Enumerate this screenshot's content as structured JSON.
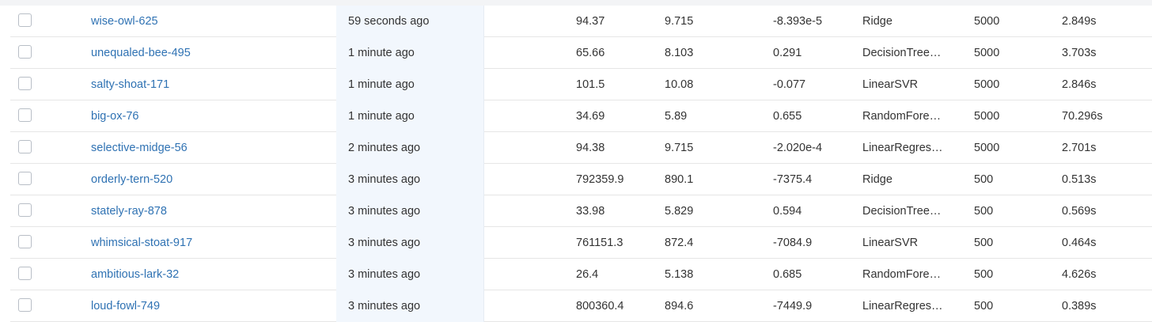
{
  "runs_table": {
    "rows": [
      {
        "run_name": "wise-owl-625",
        "created": "59 seconds ago",
        "metric_1": "94.37",
        "metric_2": "9.715",
        "metric_3": "-8.393e-5",
        "model": "Ridge",
        "param": "5000",
        "duration": "2.849s"
      },
      {
        "run_name": "unequaled-bee-495",
        "created": "1 minute ago",
        "metric_1": "65.66",
        "metric_2": "8.103",
        "metric_3": "0.291",
        "model": "DecisionTree…",
        "param": "5000",
        "duration": "3.703s"
      },
      {
        "run_name": "salty-shoat-171",
        "created": "1 minute ago",
        "metric_1": "101.5",
        "metric_2": "10.08",
        "metric_3": "-0.077",
        "model": "LinearSVR",
        "param": "5000",
        "duration": "2.846s"
      },
      {
        "run_name": "big-ox-76",
        "created": "1 minute ago",
        "metric_1": "34.69",
        "metric_2": "5.89",
        "metric_3": "0.655",
        "model": "RandomFore…",
        "param": "5000",
        "duration": "70.296s"
      },
      {
        "run_name": "selective-midge-56",
        "created": "2 minutes ago",
        "metric_1": "94.38",
        "metric_2": "9.715",
        "metric_3": "-2.020e-4",
        "model": "LinearRegres…",
        "param": "5000",
        "duration": "2.701s"
      },
      {
        "run_name": "orderly-tern-520",
        "created": "3 minutes ago",
        "metric_1": "792359.9",
        "metric_2": "890.1",
        "metric_3": "-7375.4",
        "model": "Ridge",
        "param": "500",
        "duration": "0.513s"
      },
      {
        "run_name": "stately-ray-878",
        "created": "3 minutes ago",
        "metric_1": "33.98",
        "metric_2": "5.829",
        "metric_3": "0.594",
        "model": "DecisionTree…",
        "param": "500",
        "duration": "0.569s"
      },
      {
        "run_name": "whimsical-stoat-917",
        "created": "3 minutes ago",
        "metric_1": "761151.3",
        "metric_2": "872.4",
        "metric_3": "-7084.9",
        "model": "LinearSVR",
        "param": "500",
        "duration": "0.464s"
      },
      {
        "run_name": "ambitious-lark-32",
        "created": "3 minutes ago",
        "metric_1": "26.4",
        "metric_2": "5.138",
        "metric_3": "0.685",
        "model": "RandomFore…",
        "param": "500",
        "duration": "4.626s"
      },
      {
        "run_name": "loud-fowl-749",
        "created": "3 minutes ago",
        "metric_1": "800360.4",
        "metric_2": "894.6",
        "metric_3": "-7449.9",
        "model": "LinearRegres…",
        "param": "500",
        "duration": "0.389s"
      }
    ]
  }
}
